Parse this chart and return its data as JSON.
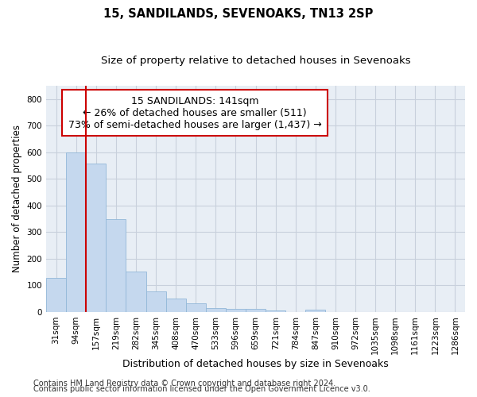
{
  "title": "15, SANDILANDS, SEVENOAKS, TN13 2SP",
  "subtitle": "Size of property relative to detached houses in Sevenoaks",
  "xlabel": "Distribution of detached houses by size in Sevenoaks",
  "ylabel": "Number of detached properties",
  "categories": [
    "31sqm",
    "94sqm",
    "157sqm",
    "219sqm",
    "282sqm",
    "345sqm",
    "408sqm",
    "470sqm",
    "533sqm",
    "596sqm",
    "659sqm",
    "721sqm",
    "784sqm",
    "847sqm",
    "910sqm",
    "972sqm",
    "1035sqm",
    "1098sqm",
    "1161sqm",
    "1223sqm",
    "1286sqm"
  ],
  "values": [
    128,
    600,
    558,
    348,
    151,
    76,
    51,
    33,
    15,
    12,
    12,
    5,
    0,
    8,
    0,
    0,
    0,
    0,
    0,
    0,
    0
  ],
  "bar_color": "#c5d8ee",
  "bar_edge_color": "#92b8d8",
  "vline_color": "#cc0000",
  "vline_x_index": 1.5,
  "annotation_text": "15 SANDILANDS: 141sqm\n← 26% of detached houses are smaller (511)\n73% of semi-detached houses are larger (1,437) →",
  "annotation_box_color": "#ffffff",
  "annotation_box_edge_color": "#cc0000",
  "ylim": [
    0,
    850
  ],
  "yticks": [
    0,
    100,
    200,
    300,
    400,
    500,
    600,
    700,
    800
  ],
  "grid_color": "#c8d0dc",
  "bg_color": "#e8eef5",
  "footer1": "Contains HM Land Registry data © Crown copyright and database right 2024.",
  "footer2": "Contains public sector information licensed under the Open Government Licence v3.0.",
  "title_fontsize": 10.5,
  "subtitle_fontsize": 9.5,
  "ylabel_fontsize": 8.5,
  "xlabel_fontsize": 9,
  "tick_fontsize": 7.5,
  "annotation_fontsize": 9,
  "footer_fontsize": 7
}
